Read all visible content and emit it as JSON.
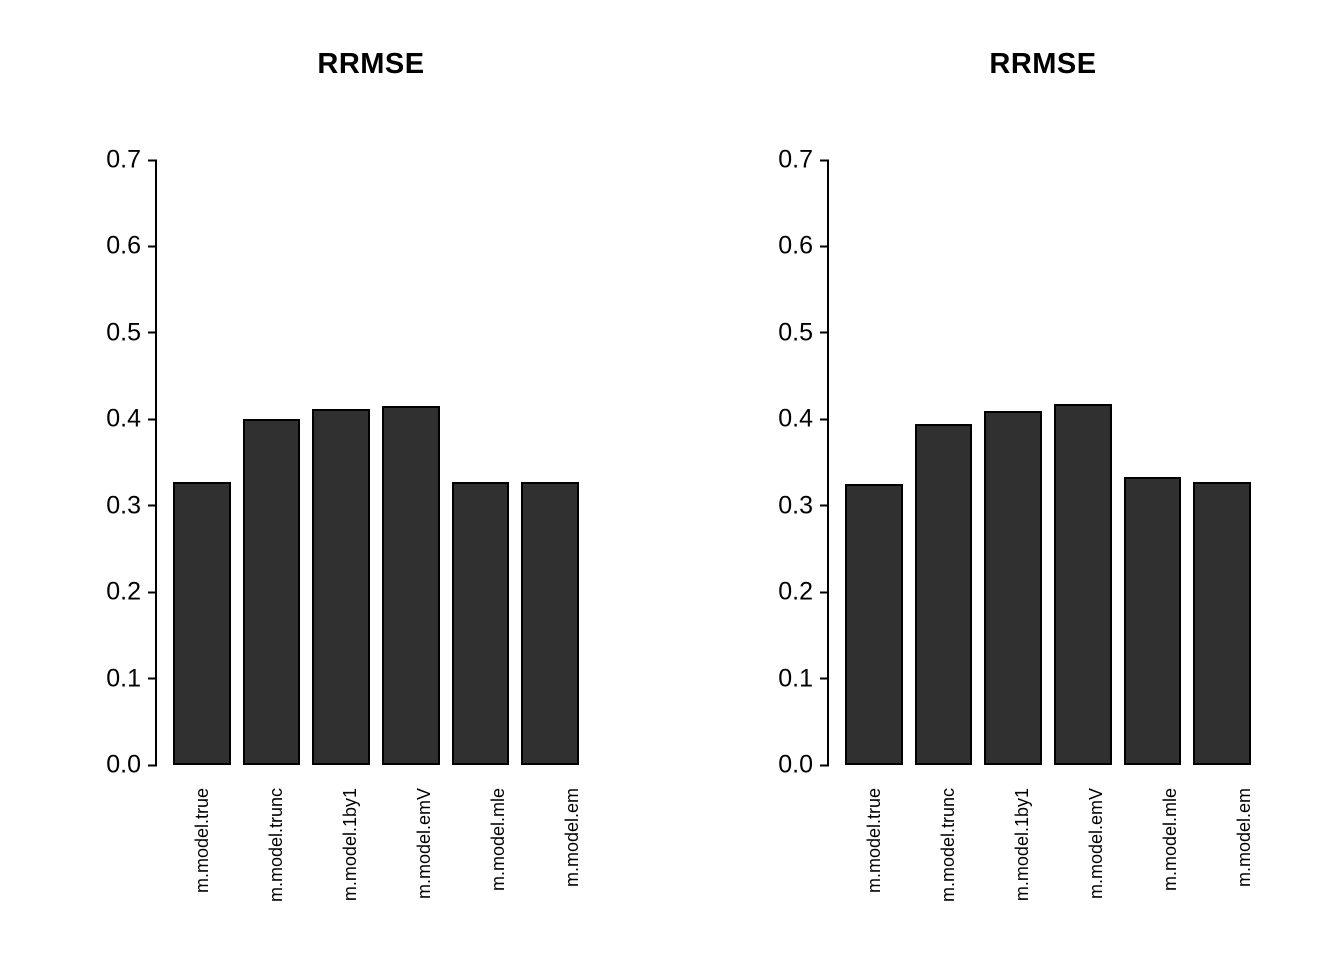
{
  "figure": {
    "background": "#ffffff"
  },
  "chart_data": [
    {
      "type": "bar",
      "title": "RRMSE",
      "categories": [
        "m.model.true",
        "m.model.trunc",
        "m.model.1by1",
        "m.model.emV",
        "m.model.mle",
        "m.model.em"
      ],
      "values": [
        0.328,
        0.4,
        0.412,
        0.415,
        0.327,
        0.328
      ],
      "xlabel": "",
      "ylabel": "",
      "ylim": [
        0,
        0.7
      ],
      "yticks": [
        "0.0",
        "0.1",
        "0.2",
        "0.3",
        "0.4",
        "0.5",
        "0.6",
        "0.7"
      ],
      "grid": false,
      "bar_color": "#303030",
      "bar_border_color": "#000000",
      "x_tick_label_rotation": 90
    },
    {
      "type": "bar",
      "title": "RRMSE",
      "categories": [
        "m.model.true",
        "m.model.trunc",
        "m.model.1by1",
        "m.model.emV",
        "m.model.mle",
        "m.model.em"
      ],
      "values": [
        0.325,
        0.395,
        0.41,
        0.418,
        0.333,
        0.328
      ],
      "xlabel": "",
      "ylabel": "",
      "ylim": [
        0,
        0.7
      ],
      "yticks": [
        "0.0",
        "0.1",
        "0.2",
        "0.3",
        "0.4",
        "0.5",
        "0.6",
        "0.7"
      ],
      "grid": false,
      "bar_color": "#303030",
      "bar_border_color": "#000000",
      "x_tick_label_rotation": 90
    }
  ]
}
